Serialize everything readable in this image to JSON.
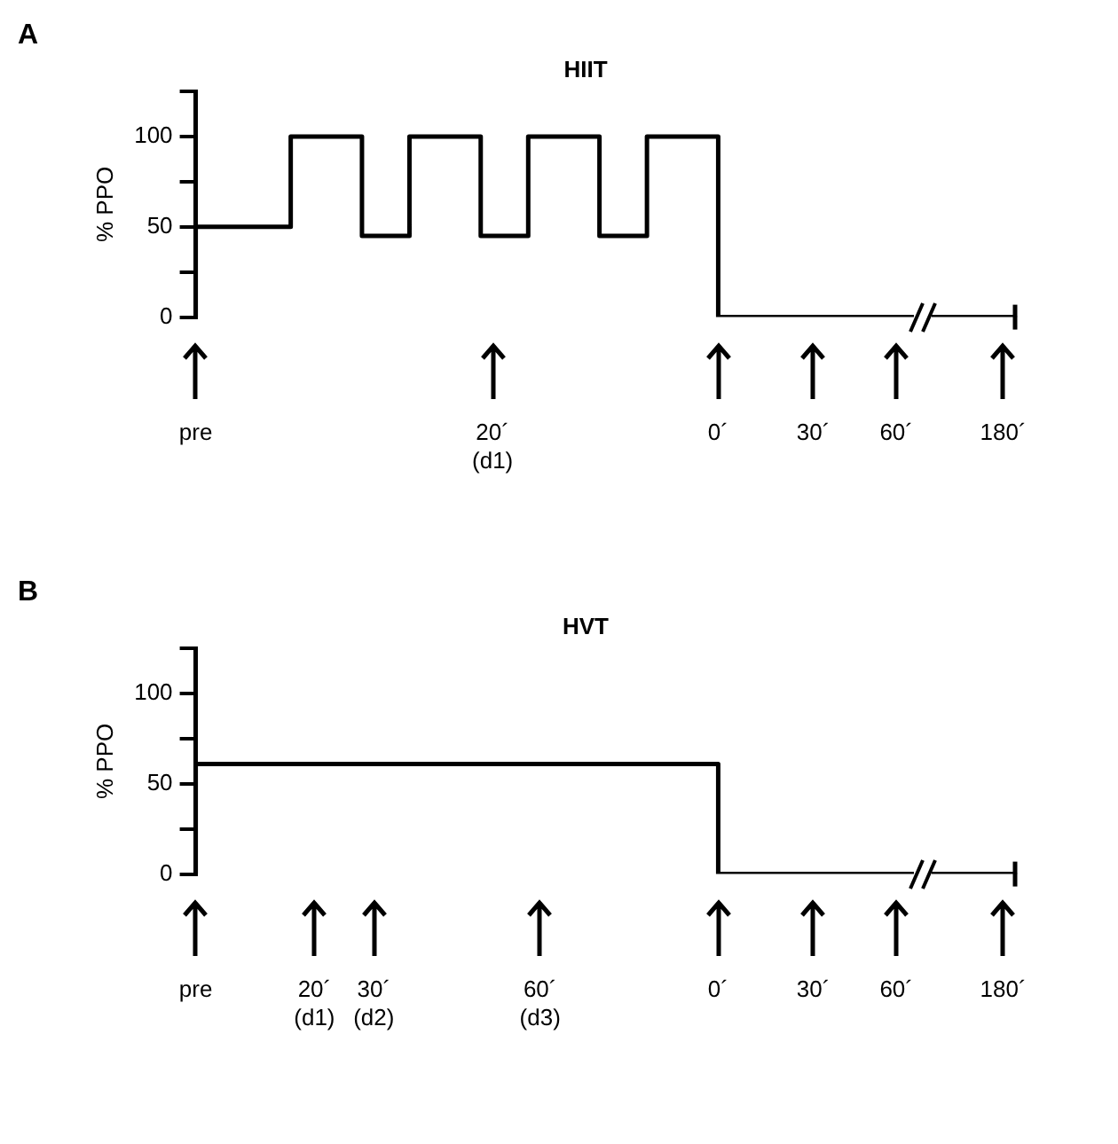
{
  "chart_data": [
    {
      "type": "step",
      "title": "HIIT",
      "ylabel": "% PPO",
      "annotations": [
        "A"
      ],
      "marker": "none",
      "ylim": [
        0,
        125
      ],
      "categories": [
        "pre",
        null,
        null,
        null,
        null,
        null,
        null,
        null,
        null,
        null,
        null,
        null,
        null,
        null,
        null,
        null,
        null,
        null,
        null,
        null,
        null,
        null,
        null,
        null,
        null,
        "20´\n(d1)",
        null,
        null,
        null,
        null,
        null,
        null,
        null,
        null,
        null,
        null,
        null,
        null,
        null,
        null,
        null,
        null,
        null,
        null,
        "0´",
        null,
        null,
        null,
        null,
        null,
        null,
        null,
        "30´",
        null,
        null,
        null,
        null,
        null,
        null,
        "60´",
        null,
        null,
        null,
        null,
        null,
        null,
        null,
        null,
        "180´",
        null
      ],
      "yticks": [
        0,
        {
          "value": 25,
          "label": null
        },
        50,
        {
          "value": 75,
          "label": null
        },
        100,
        {
          "value": 125,
          "label": null
        }
      ],
      "series": [
        {
          "color": "#000000",
          "values": [
            50,
            50,
            50,
            50,
            50,
            50,
            50,
            50,
            100,
            100,
            100,
            100,
            100,
            100,
            45,
            45,
            45,
            45,
            100,
            100,
            100,
            100,
            100,
            100,
            45,
            45,
            45,
            45,
            100,
            100,
            100,
            100,
            100,
            100,
            45,
            45,
            45,
            45,
            100,
            100,
            100,
            100,
            100,
            100,
            0,
            0,
            0,
            0,
            0,
            0,
            0,
            0,
            0,
            0,
            0,
            0,
            0,
            0,
            0,
            0,
            0,
            0,
            0,
            0,
            0,
            0,
            0,
            0,
            0,
            0
          ]
        }
      ]
    },
    {
      "type": "step",
      "title": "HVT",
      "ylabel": "% PPO",
      "annotations": [
        "B"
      ],
      "marker": "none",
      "ylim": [
        0,
        125
      ],
      "categories": [
        "pre",
        null,
        null,
        null,
        null,
        null,
        null,
        null,
        null,
        null,
        "20´\n(d1)",
        null,
        null,
        null,
        null,
        "30´\n(d2)",
        null,
        null,
        null,
        null,
        null,
        null,
        null,
        null,
        null,
        null,
        null,
        null,
        null,
        "60´\n(d3)",
        null,
        null,
        null,
        null,
        null,
        null,
        null,
        null,
        null,
        null,
        null,
        null,
        null,
        null,
        "0´",
        null,
        null,
        null,
        null,
        null,
        null,
        null,
        "30´",
        null,
        null,
        null,
        null,
        null,
        null,
        "60´",
        null,
        null,
        null,
        null,
        null,
        null,
        null,
        null,
        "180´",
        null
      ],
      "yticks": [
        0,
        {
          "value": 25,
          "label": null
        },
        50,
        {
          "value": 75,
          "label": null
        },
        100,
        {
          "value": 125,
          "label": null
        }
      ],
      "series": [
        {
          "color": "#000000",
          "values": [
            61,
            61,
            61,
            61,
            61,
            61,
            61,
            61,
            61,
            61,
            61,
            61,
            61,
            61,
            61,
            61,
            61,
            61,
            61,
            61,
            61,
            61,
            61,
            61,
            61,
            61,
            61,
            61,
            61,
            61,
            61,
            61,
            61,
            61,
            61,
            61,
            61,
            61,
            61,
            61,
            61,
            61,
            61,
            61,
            0,
            0,
            0,
            0,
            0,
            0,
            0,
            0,
            0,
            0,
            0,
            0,
            0,
            0,
            0,
            0,
            0,
            0,
            0,
            0,
            0,
            0,
            0,
            0,
            0,
            0
          ]
        }
      ]
    }
  ]
}
